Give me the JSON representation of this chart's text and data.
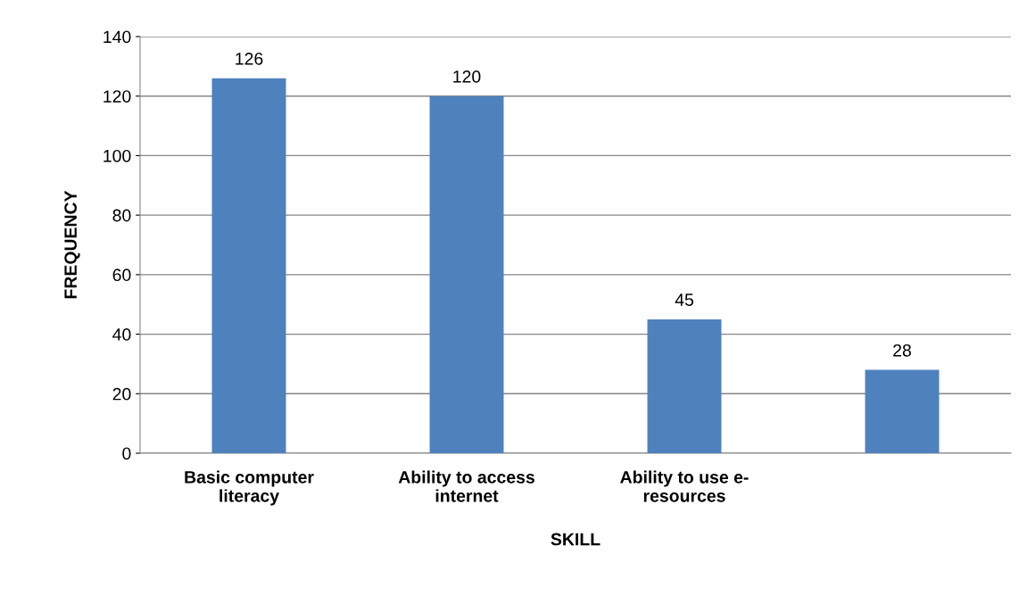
{
  "chart_data": {
    "type": "bar",
    "xlabel": "SKILL",
    "ylabel": "FREQUENCY",
    "categories": [
      "Basic computer\nliteracy",
      "Ability to access\ninternet",
      "Ability to use e-\nresources",
      null
    ],
    "values": [
      126,
      120,
      45,
      28
    ],
    "color": "#4f81bd",
    "ylim": [
      0,
      140
    ],
    "yticks": [
      0,
      20,
      40,
      60,
      80,
      100,
      120,
      140
    ],
    "grid": "y",
    "data_labels": true
  }
}
